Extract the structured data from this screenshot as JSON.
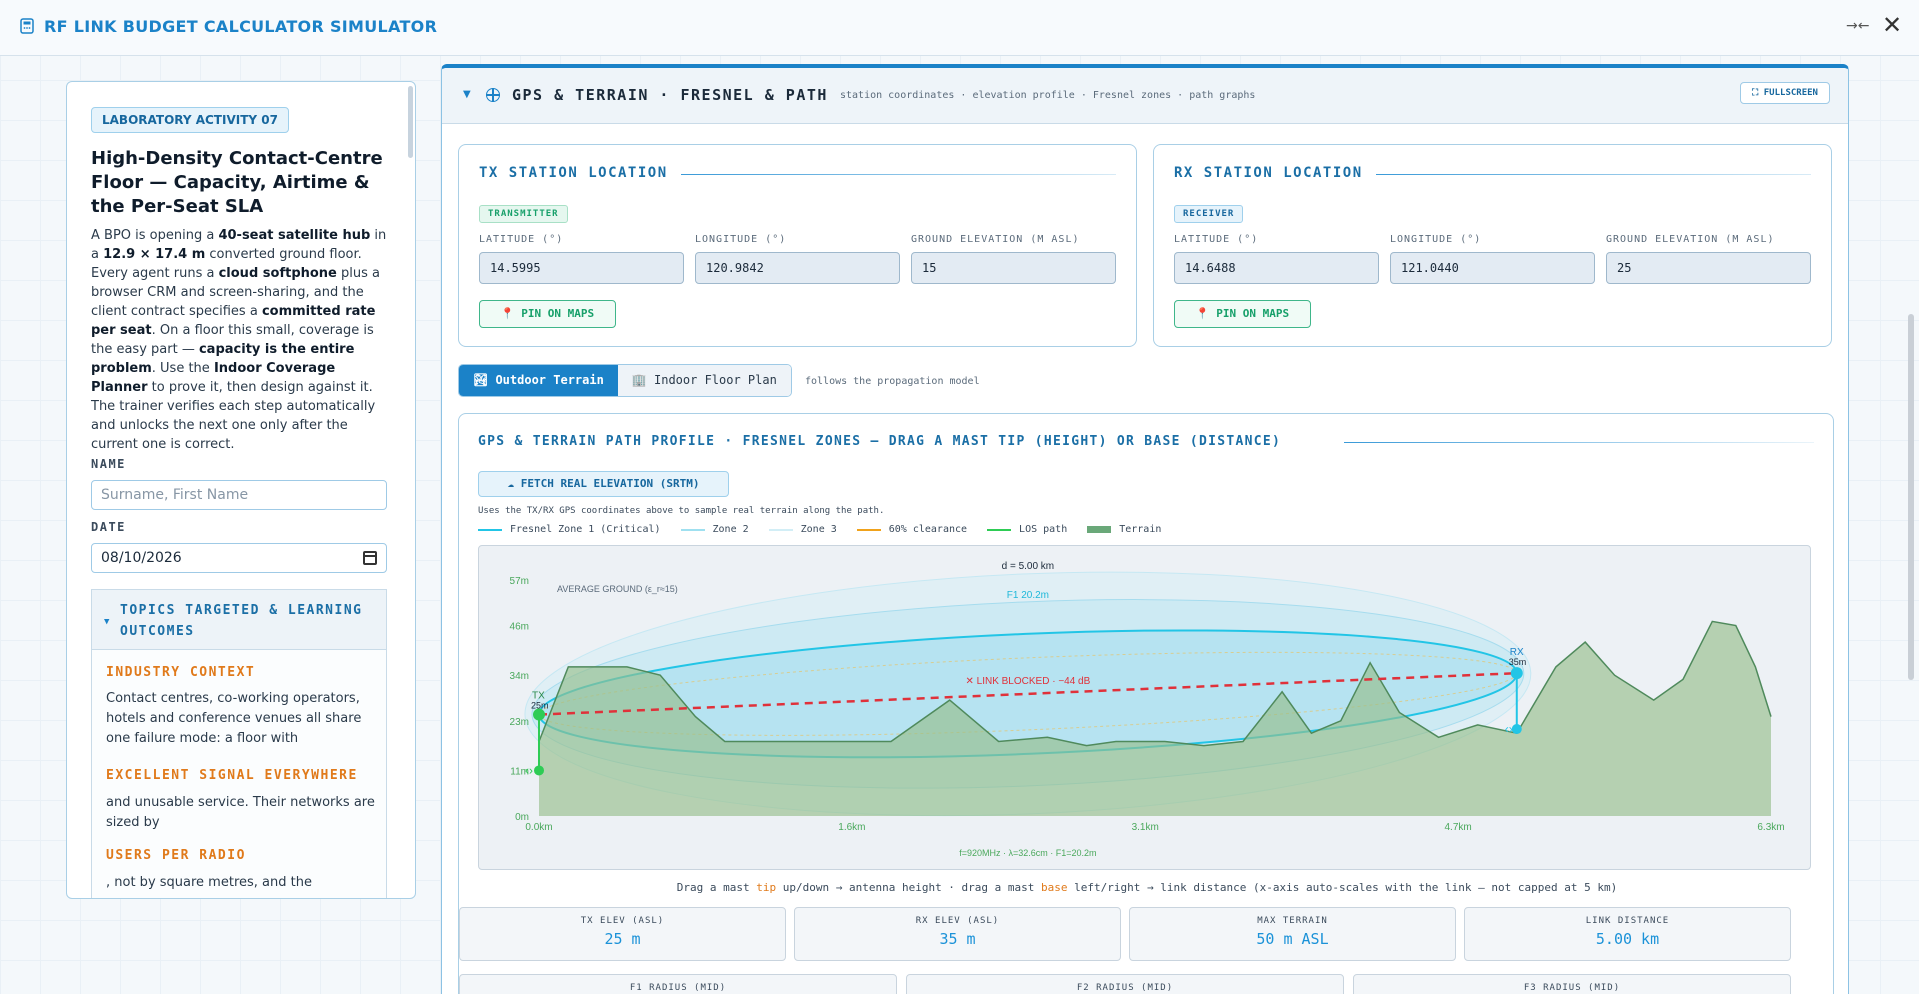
{
  "app": {
    "title": "RF LINK BUDGET CALCULATOR SIMULATOR",
    "collapse_icon": "collapse-arrows-icon",
    "close_icon": "close-icon"
  },
  "lab": {
    "badge": "LABORATORY ACTIVITY 07",
    "title": "High-Density Contact-Centre Floor — Capacity, Airtime & the Per-Seat SLA",
    "desc_parts": [
      "A BPO is opening a ",
      "40-seat satellite hub",
      " in a ",
      "12.9 × 17.4 m",
      " converted ground floor. Every agent runs a ",
      "cloud softphone",
      " plus a browser CRM and screen-sharing, and the client contract specifies a ",
      "committed rate per seat",
      ". On a floor this small, coverage is the easy part — ",
      "capacity is the entire problem",
      ". Use the ",
      "Indoor Coverage Planner",
      " to prove it, then design against it. The trainer verifies each step automatically and unlocks the next one only after the current one is correct."
    ],
    "name_label": "NAME",
    "name_placeholder": "Surname, First Name",
    "date_label": "DATE",
    "date_value": "08/10/2026",
    "topics_title": "TOPICS TARGETED & LEARNING OUTCOMES",
    "topics": [
      {
        "heading": "INDUSTRY CONTEXT",
        "text": "Contact centres, co-working operators, hotels and conference venues all share one failure mode: a floor with"
      },
      {
        "heading": "EXCELLENT SIGNAL EVERYWHERE",
        "text": "and unusable service. Their networks are sized by"
      },
      {
        "heading": "USERS PER RADIO",
        "text": ", not by square metres, and the"
      }
    ]
  },
  "panel": {
    "title": "GPS & TERRAIN · FRESNEL & PATH",
    "subtitle": "station coordinates · elevation profile · Fresnel zones · path graphs",
    "fullscreen": "⛶ FULLSCREEN",
    "tx": {
      "title": "TX STATION LOCATION",
      "tag": "TRANSMITTER",
      "lat_label": "LATITUDE (°)",
      "lat": "14.5995",
      "lon_label": "LONGITUDE (°)",
      "lon": "120.9842",
      "elev_label": "GROUND ELEVATION (M ASL)",
      "elev": "15",
      "pin": "PIN ON MAPS"
    },
    "rx": {
      "title": "RX STATION LOCATION",
      "tag": "RECEIVER",
      "lat_label": "LATITUDE (°)",
      "lat": "14.6488",
      "lon_label": "LONGITUDE (°)",
      "lon": "121.0440",
      "elev_label": "GROUND ELEVATION (M ASL)",
      "elev": "25",
      "pin": "PIN ON MAPS"
    },
    "mode_tabs": [
      "🏞 Outdoor Terrain",
      "🏢 Indoor Floor Plan"
    ],
    "mode_active": 0,
    "mode_note": "follows the propagation model",
    "profile_title": "GPS & TERRAIN PATH PROFILE · FRESNEL ZONES — DRAG A MAST TIP (HEIGHT) OR BASE (DISTANCE)",
    "fetch": "☁ FETCH REAL ELEVATION (SRTM)",
    "fetch_note": "Uses the TX/RX GPS coordinates above to sample real terrain along the path.",
    "legend": [
      {
        "label": "Fresnel Zone 1 (Critical)",
        "color": "#22c5e6"
      },
      {
        "label": "Zone 2",
        "color": "#9fe0f0"
      },
      {
        "label": "Zone 3",
        "color": "#d2eef6"
      },
      {
        "label": "60% clearance",
        "color": "#f0a21b"
      },
      {
        "label": "LOS path",
        "color": "#2ecc55"
      },
      {
        "label": "Terrain",
        "color": "#6aa879"
      }
    ],
    "drag_note": [
      "Drag a mast ",
      "tip",
      " up/down → antenna height  ·  drag a mast ",
      "base",
      " left/right → link distance  (x-axis auto-scales with the link — not capped at 5 km)"
    ],
    "metrics": [
      {
        "label": "TX ELEV (ASL)",
        "value": "25 m"
      },
      {
        "label": "RX ELEV (ASL)",
        "value": "35 m"
      },
      {
        "label": "MAX TERRAIN",
        "value": "50 m ASL"
      },
      {
        "label": "LINK DISTANCE",
        "value": "5.00 km"
      }
    ],
    "metrics2": [
      "F1 RADIUS (MID)",
      "F2 RADIUS (MID)",
      "F3 RADIUS (MID)"
    ]
  },
  "chart_data": {
    "type": "area",
    "title": "",
    "x_unit": "km",
    "x_ticks": [
      "0.0km",
      "1.6km",
      "3.1km",
      "4.7km",
      "6.3km"
    ],
    "y_ticks": [
      "0m",
      "11m",
      "23m",
      "34m",
      "46m",
      "57m"
    ],
    "xlim": [
      0,
      6.3
    ],
    "ylim": [
      0,
      57
    ],
    "terrain": {
      "x": [
        0,
        0.15,
        0.45,
        0.62,
        0.8,
        0.95,
        1.3,
        1.8,
        2.1,
        2.35,
        2.6,
        2.8,
        2.95,
        3.2,
        3.4,
        3.6,
        3.8,
        3.95,
        4.1,
        4.25,
        4.4,
        4.6,
        4.8,
        5.0,
        5.2,
        5.35,
        5.5,
        5.7,
        5.85,
        6.0,
        6.12,
        6.22,
        6.3
      ],
      "y": [
        18,
        36,
        36,
        34,
        24,
        18,
        18,
        18,
        28,
        18,
        19,
        17,
        18,
        18,
        17,
        18,
        30,
        20,
        23,
        37,
        25,
        19,
        22,
        20,
        36,
        42,
        34,
        28,
        33,
        47,
        46,
        36,
        24
      ]
    },
    "tx": {
      "x": 0,
      "ground": 11,
      "height_label": "25m",
      "label": "TX"
    },
    "rx": {
      "x": 5.0,
      "ground": 21,
      "height_label": "35m",
      "label": "RX"
    },
    "los": {
      "x": [
        0,
        5.0
      ],
      "y": [
        24.5,
        34.5
      ]
    },
    "annotations": {
      "distance": "d = 5.00 km",
      "f1_label": "F1 20.2m",
      "blocked": "✕ LINK BLOCKED · −44 dB",
      "avg_ground": "AVERAGE GROUND (ε_r≈15)",
      "footer": "f=920MHz · λ=32.6cm · F1=20.2m"
    }
  }
}
